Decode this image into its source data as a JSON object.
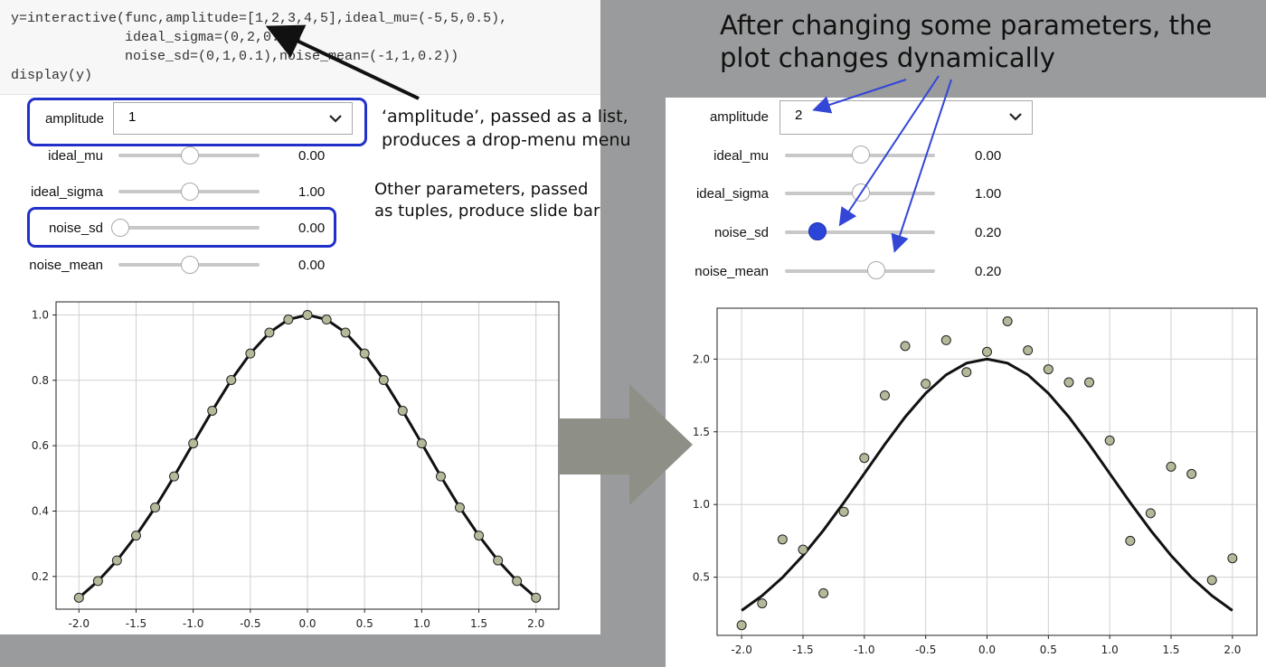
{
  "code": {
    "lines": [
      "y=interactive(func,amplitude=[1,2,3,4,5],ideal_mu=(-5,5,0.5),",
      "              ideal_sigma=(0,2,0.2),",
      "              noise_sd=(0,1,0.1),noise_mean=(-1,1,0.2))",
      "display(y)"
    ]
  },
  "left": {
    "amplitude_label": "amplitude",
    "amplitude_value": "1",
    "sliders": [
      {
        "label": "ideal_mu",
        "value": "0.00",
        "level": 0.5
      },
      {
        "label": "ideal_sigma",
        "value": "1.00",
        "level": 0.5
      },
      {
        "label": "noise_sd",
        "value": "0.00",
        "level": 0.0
      },
      {
        "label": "noise_mean",
        "value": "0.00",
        "level": 0.5
      }
    ]
  },
  "right": {
    "amplitude_label": "amplitude",
    "amplitude_value": "2",
    "sliders": [
      {
        "label": "ideal_mu",
        "value": "0.00",
        "level": 0.5
      },
      {
        "label": "ideal_sigma",
        "value": "1.00",
        "level": 0.5
      },
      {
        "label": "noise_sd",
        "value": "0.20",
        "level": 0.2
      },
      {
        "label": "noise_mean",
        "value": "0.20",
        "level": 0.6
      }
    ]
  },
  "annotations": {
    "title_line1": "After changing some parameters, the",
    "title_line2": "plot changes dynamically",
    "amp_note_line1": "‘amplitude’, passed as a list,",
    "amp_note_line2": "produces a drop-menu menu",
    "slider_note_line1": "Other parameters, passed",
    "slider_note_line2": "as tuples, produce slide bar"
  },
  "colors": {
    "highlight": "#2030c8",
    "marker_fill": "#b5b99a",
    "active_thumb": "#2a45d8"
  },
  "chart_data": [
    {
      "type": "line",
      "title": "",
      "xlabel": "",
      "ylabel": "",
      "xlim": [
        -2.2,
        2.2
      ],
      "ylim": [
        0.1,
        1.04
      ],
      "xticks": [
        "-2.0",
        "-1.5",
        "-1.0",
        "-0.5",
        "0.0",
        "0.5",
        "1.0",
        "1.5",
        "2.0"
      ],
      "yticks": [
        "0.2",
        "0.4",
        "0.6",
        "0.8",
        "1.0"
      ],
      "grid": true,
      "series": [
        {
          "kind": "line",
          "x": [
            -2.0,
            -1.833,
            -1.667,
            -1.5,
            -1.333,
            -1.167,
            -1.0,
            -0.833,
            -0.667,
            -0.5,
            -0.333,
            -0.167,
            0.0,
            0.167,
            0.333,
            0.5,
            0.667,
            0.833,
            1.0,
            1.167,
            1.333,
            1.5,
            1.667,
            1.833,
            2.0
          ],
          "y": [
            0.135,
            0.186,
            0.249,
            0.325,
            0.411,
            0.506,
            0.607,
            0.707,
            0.801,
            0.882,
            0.946,
            0.986,
            1.0,
            0.986,
            0.946,
            0.882,
            0.801,
            0.707,
            0.607,
            0.506,
            0.411,
            0.325,
            0.249,
            0.186,
            0.135
          ]
        },
        {
          "kind": "scatter",
          "x": [
            -2.0,
            -1.833,
            -1.667,
            -1.5,
            -1.333,
            -1.167,
            -1.0,
            -0.833,
            -0.667,
            -0.5,
            -0.333,
            -0.167,
            0.0,
            0.167,
            0.333,
            0.5,
            0.667,
            0.833,
            1.0,
            1.167,
            1.333,
            1.5,
            1.667,
            1.833,
            2.0
          ],
          "y": [
            0.135,
            0.186,
            0.249,
            0.325,
            0.411,
            0.506,
            0.607,
            0.707,
            0.801,
            0.882,
            0.946,
            0.986,
            1.0,
            0.986,
            0.946,
            0.882,
            0.801,
            0.707,
            0.607,
            0.506,
            0.411,
            0.325,
            0.249,
            0.186,
            0.135
          ]
        }
      ]
    },
    {
      "type": "line",
      "title": "",
      "xlabel": "",
      "ylabel": "",
      "xlim": [
        -2.2,
        2.2
      ],
      "ylim": [
        0.1,
        2.35
      ],
      "xticks": [
        "-2.0",
        "-1.5",
        "-1.0",
        "-0.5",
        "0.0",
        "0.5",
        "1.0",
        "1.5",
        "2.0"
      ],
      "yticks": [
        "0.5",
        "1.0",
        "1.5",
        "2.0"
      ],
      "grid": true,
      "series": [
        {
          "kind": "line",
          "x": [
            -2.0,
            -1.833,
            -1.667,
            -1.5,
            -1.333,
            -1.167,
            -1.0,
            -0.833,
            -0.667,
            -0.5,
            -0.333,
            -0.167,
            0.0,
            0.167,
            0.333,
            0.5,
            0.667,
            0.833,
            1.0,
            1.167,
            1.333,
            1.5,
            1.667,
            1.833,
            2.0
          ],
          "y": [
            0.271,
            0.373,
            0.498,
            0.649,
            0.823,
            1.013,
            1.213,
            1.414,
            1.602,
            1.765,
            1.892,
            1.972,
            2.0,
            1.972,
            1.892,
            1.765,
            1.602,
            1.414,
            1.213,
            1.013,
            0.823,
            0.649,
            0.498,
            0.373,
            0.271
          ]
        },
        {
          "kind": "scatter",
          "x": [
            -2.0,
            -1.833,
            -1.667,
            -1.5,
            -1.333,
            -1.167,
            -1.0,
            -0.833,
            -0.667,
            -0.5,
            -0.333,
            -0.167,
            0.0,
            0.167,
            0.333,
            0.5,
            0.667,
            0.833,
            1.0,
            1.167,
            1.333,
            1.5,
            1.667,
            1.833,
            2.0
          ],
          "y": [
            0.17,
            0.32,
            0.76,
            0.69,
            0.39,
            0.95,
            1.32,
            1.75,
            2.09,
            1.83,
            2.13,
            1.91,
            2.05,
            2.26,
            2.06,
            1.93,
            1.84,
            1.84,
            1.44,
            0.75,
            0.94,
            1.26,
            1.21,
            0.48,
            0.63
          ]
        }
      ]
    }
  ]
}
